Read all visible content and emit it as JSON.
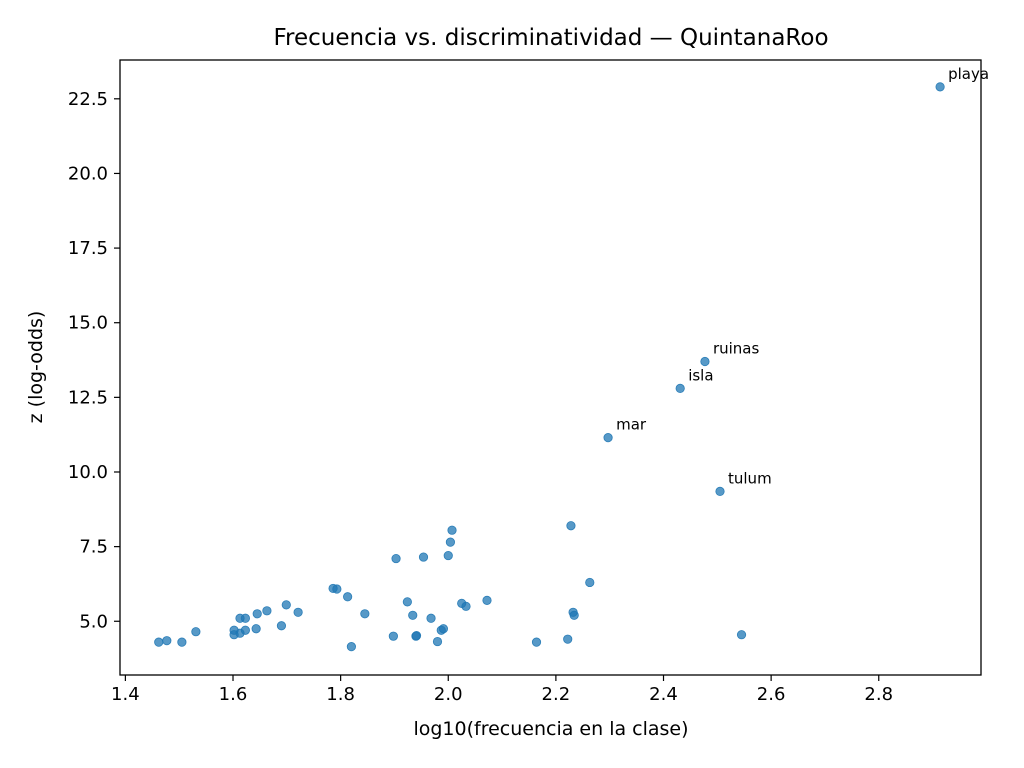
{
  "chart_data": {
    "type": "scatter",
    "title": "Frecuencia vs. discriminatividad — QuintanaRoo",
    "xlabel": "log10(frecuencia en la clase)",
    "ylabel": "z (log-odds)",
    "xlim": [
      1.39,
      2.99
    ],
    "ylim": [
      3.2,
      23.8
    ],
    "xticks": [
      1.4,
      1.6,
      1.8,
      2.0,
      2.2,
      2.4,
      2.6,
      2.8
    ],
    "xtick_labels": [
      "1.4",
      "1.6",
      "1.8",
      "2.0",
      "2.2",
      "2.4",
      "2.6",
      "2.8"
    ],
    "yticks": [
      5.0,
      7.5,
      10.0,
      12.5,
      15.0,
      17.5,
      20.0,
      22.5
    ],
    "ytick_labels": [
      "5.0",
      "7.5",
      "10.0",
      "12.5",
      "15.0",
      "17.5",
      "20.0",
      "22.5"
    ],
    "grid": false,
    "point_color": "#1f77b4",
    "x": [
      2.914,
      2.477,
      2.431,
      2.297,
      2.505,
      2.228,
      2.007,
      2.004,
      2.0,
      1.903,
      1.954,
      2.263,
      1.786,
      1.793,
      1.813,
      1.699,
      1.721,
      1.663,
      1.645,
      1.623,
      1.613,
      1.531,
      1.643,
      1.69,
      1.623,
      1.613,
      1.602,
      1.602,
      1.477,
      1.462,
      1.505,
      1.82,
      1.845,
      1.924,
      1.934,
      1.968,
      2.025,
      2.033,
      2.072,
      1.898,
      1.94,
      1.941,
      1.987,
      1.991,
      1.98,
      2.164,
      2.222,
      2.232,
      2.234,
      2.545
    ],
    "y": [
      22.9,
      13.7,
      12.8,
      11.15,
      9.35,
      8.2,
      8.05,
      7.65,
      7.2,
      7.1,
      7.15,
      6.3,
      6.1,
      6.08,
      5.82,
      5.55,
      5.3,
      5.35,
      5.25,
      5.1,
      5.1,
      4.65,
      4.75,
      4.85,
      4.7,
      4.6,
      4.7,
      4.55,
      4.35,
      4.3,
      4.3,
      4.15,
      5.25,
      5.65,
      5.2,
      5.1,
      5.6,
      5.5,
      5.7,
      4.5,
      4.5,
      4.52,
      4.7,
      4.75,
      4.32,
      4.3,
      4.4,
      5.3,
      5.2,
      4.55
    ],
    "annotations": [
      {
        "text": "playa",
        "x": 2.914,
        "y": 22.9
      },
      {
        "text": "ruinas",
        "x": 2.477,
        "y": 13.7
      },
      {
        "text": "isla",
        "x": 2.431,
        "y": 12.8
      },
      {
        "text": "mar",
        "x": 2.297,
        "y": 11.15
      },
      {
        "text": "tulum",
        "x": 2.505,
        "y": 9.35
      }
    ]
  }
}
